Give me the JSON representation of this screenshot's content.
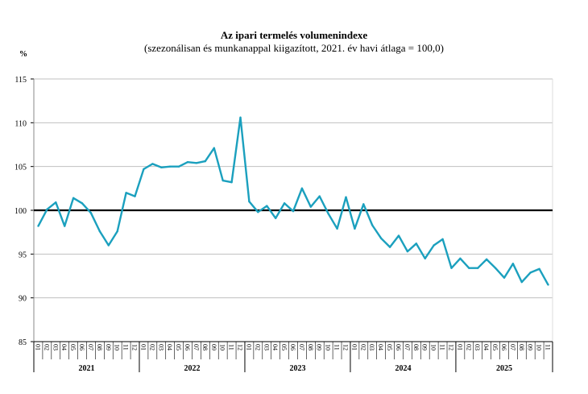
{
  "chart_data": {
    "type": "line",
    "title": "Az ipari termelés volumenindexe",
    "subtitle": "(szezonálisan és munkanappal kiigazított, 2021. év havi átlaga = 100,0)",
    "ylabel": "%",
    "xlabel": "",
    "ylim": [
      85,
      115
    ],
    "yticks": [
      85,
      90,
      95,
      100,
      105,
      110,
      115
    ],
    "grid": true,
    "reference_line": 100,
    "line_color": "#1ba0be",
    "years": [
      "2021",
      "2022",
      "2023",
      "2024",
      "2025"
    ],
    "months": [
      "01",
      "02",
      "03",
      "04",
      "05",
      "06",
      "07",
      "08",
      "09",
      "10",
      "11",
      "12"
    ],
    "month_counts": [
      12,
      12,
      12,
      12,
      11
    ],
    "values": [
      98.2,
      100.1,
      100.9,
      98.2,
      101.4,
      100.8,
      99.7,
      97.6,
      96.0,
      97.6,
      102.0,
      101.6,
      104.7,
      105.3,
      104.9,
      105.0,
      105.0,
      105.5,
      105.4,
      105.6,
      107.1,
      103.4,
      103.2,
      110.6,
      101.0,
      99.8,
      100.5,
      99.1,
      100.8,
      99.9,
      102.5,
      100.4,
      101.6,
      99.6,
      97.9,
      101.5,
      97.9,
      100.7,
      98.3,
      96.8,
      95.8,
      97.1,
      95.3,
      96.2,
      94.5,
      96.0,
      96.7,
      93.4,
      94.5,
      93.4,
      93.4,
      94.4,
      93.4,
      92.3,
      93.9,
      91.8,
      92.9,
      93.3,
      91.5
    ]
  }
}
